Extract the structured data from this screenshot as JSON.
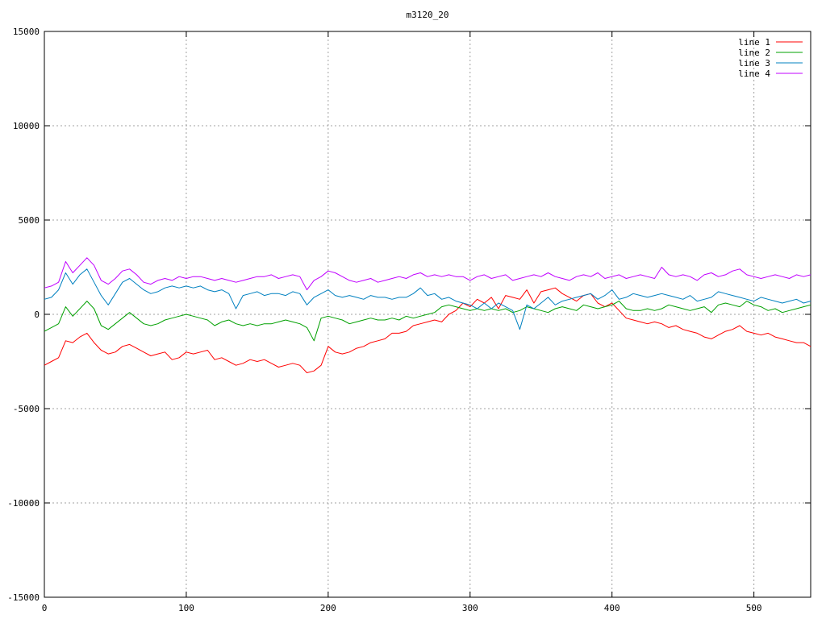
{
  "chart_data": {
    "type": "line",
    "title": "m3120_20",
    "xlabel": "",
    "ylabel": "",
    "xlim": [
      0,
      540
    ],
    "ylim": [
      -15000,
      15000
    ],
    "x_ticks": [
      0,
      100,
      200,
      300,
      400,
      500
    ],
    "x_tick_labels": [
      "0",
      "100",
      "200",
      "300",
      "400",
      "500"
    ],
    "y_ticks": [
      15000,
      10000,
      5000,
      0,
      -5000,
      -10000,
      -15000
    ],
    "y_tick_labels": [
      "15000",
      "10000",
      "5000",
      "0",
      "-5000",
      "-10000",
      "-15000"
    ],
    "grid": true,
    "legend_position": "top-right",
    "x": [
      0,
      5,
      10,
      15,
      20,
      25,
      30,
      35,
      40,
      45,
      50,
      55,
      60,
      65,
      70,
      75,
      80,
      85,
      90,
      95,
      100,
      105,
      110,
      115,
      120,
      125,
      130,
      135,
      140,
      145,
      150,
      155,
      160,
      165,
      170,
      175,
      180,
      185,
      190,
      195,
      200,
      205,
      210,
      215,
      220,
      225,
      230,
      235,
      240,
      245,
      250,
      255,
      260,
      265,
      270,
      275,
      280,
      285,
      290,
      295,
      300,
      305,
      310,
      315,
      320,
      325,
      330,
      335,
      340,
      345,
      350,
      355,
      360,
      365,
      370,
      375,
      380,
      385,
      390,
      395,
      400,
      405,
      410,
      415,
      420,
      425,
      430,
      435,
      440,
      445,
      450,
      455,
      460,
      465,
      470,
      475,
      480,
      485,
      490,
      495,
      500,
      505,
      510,
      515,
      520,
      525,
      530,
      535,
      540
    ],
    "series": [
      {
        "name": "line 1",
        "color": "#ff0000",
        "values": [
          -2700,
          -2500,
          -2300,
          -1400,
          -1500,
          -1200,
          -1000,
          -1500,
          -1900,
          -2100,
          -2000,
          -1700,
          -1600,
          -1800,
          -2000,
          -2200,
          -2100,
          -2000,
          -2400,
          -2300,
          -2000,
          -2100,
          -2000,
          -1900,
          -2400,
          -2300,
          -2500,
          -2700,
          -2600,
          -2400,
          -2500,
          -2400,
          -2600,
          -2800,
          -2700,
          -2600,
          -2700,
          -3100,
          -3000,
          -2700,
          -1700,
          -2000,
          -2100,
          -2000,
          -1800,
          -1700,
          -1500,
          -1400,
          -1300,
          -1000,
          -1000,
          -900,
          -600,
          -500,
          -400,
          -300,
          -400,
          0,
          200,
          600,
          400,
          800,
          600,
          900,
          300,
          1000,
          900,
          800,
          1300,
          600,
          1200,
          1300,
          1400,
          1100,
          900,
          700,
          1000,
          1100,
          600,
          400,
          600,
          200,
          -200,
          -300,
          -400,
          -500,
          -400,
          -500,
          -700,
          -600,
          -800,
          -900,
          -1000,
          -1200,
          -1300,
          -1100,
          -900,
          -800,
          -600,
          -900,
          -1000,
          -1100,
          -1000,
          -1200,
          -1300,
          -1400,
          -1500,
          -1500,
          -1700
        ]
      },
      {
        "name": "line 2",
        "color": "#00a000",
        "values": [
          -900,
          -700,
          -500,
          400,
          -100,
          300,
          700,
          300,
          -600,
          -800,
          -500,
          -200,
          100,
          -200,
          -500,
          -600,
          -500,
          -300,
          -200,
          -100,
          0,
          -100,
          -200,
          -300,
          -600,
          -400,
          -300,
          -500,
          -600,
          -500,
          -600,
          -500,
          -500,
          -400,
          -300,
          -400,
          -500,
          -700,
          -1400,
          -200,
          -100,
          -200,
          -300,
          -500,
          -400,
          -300,
          -200,
          -300,
          -300,
          -200,
          -300,
          -100,
          -200,
          -100,
          0,
          100,
          400,
          500,
          400,
          300,
          200,
          300,
          200,
          300,
          200,
          300,
          100,
          200,
          400,
          300,
          200,
          100,
          300,
          400,
          300,
          200,
          500,
          400,
          300,
          400,
          500,
          700,
          300,
          200,
          200,
          300,
          200,
          300,
          500,
          400,
          300,
          200,
          300,
          400,
          100,
          500,
          600,
          500,
          400,
          700,
          500,
          400,
          200,
          300,
          100,
          200,
          300,
          400,
          500
        ]
      },
      {
        "name": "line 3",
        "color": "#0080c0",
        "values": [
          800,
          900,
          1300,
          2200,
          1600,
          2100,
          2400,
          1700,
          1000,
          500,
          1100,
          1700,
          1900,
          1600,
          1300,
          1100,
          1200,
          1400,
          1500,
          1400,
          1500,
          1400,
          1500,
          1300,
          1200,
          1300,
          1100,
          300,
          1000,
          1100,
          1200,
          1000,
          1100,
          1100,
          1000,
          1200,
          1100,
          500,
          900,
          1100,
          1300,
          1000,
          900,
          1000,
          900,
          800,
          1000,
          900,
          900,
          800,
          900,
          900,
          1100,
          1400,
          1000,
          1100,
          800,
          900,
          700,
          600,
          500,
          300,
          600,
          300,
          600,
          400,
          200,
          -800,
          500,
          300,
          600,
          900,
          500,
          700,
          800,
          900,
          1000,
          1100,
          800,
          1000,
          1300,
          800,
          900,
          1100,
          1000,
          900,
          1000,
          1100,
          1000,
          900,
          800,
          1000,
          700,
          800,
          900,
          1200,
          1100,
          1000,
          900,
          800,
          700,
          900,
          800,
          700,
          600,
          700,
          800,
          600,
          700
        ]
      },
      {
        "name": "line 4",
        "color": "#c000ff",
        "values": [
          1400,
          1500,
          1700,
          2800,
          2200,
          2600,
          3000,
          2600,
          1800,
          1600,
          1900,
          2300,
          2400,
          2100,
          1700,
          1600,
          1800,
          1900,
          1800,
          2000,
          1900,
          2000,
          2000,
          1900,
          1800,
          1900,
          1800,
          1700,
          1800,
          1900,
          2000,
          2000,
          2100,
          1900,
          2000,
          2100,
          2000,
          1300,
          1800,
          2000,
          2300,
          2200,
          2000,
          1800,
          1700,
          1800,
          1900,
          1700,
          1800,
          1900,
          2000,
          1900,
          2100,
          2200,
          2000,
          2100,
          2000,
          2100,
          2000,
          2000,
          1800,
          2000,
          2100,
          1900,
          2000,
          2100,
          1800,
          1900,
          2000,
          2100,
          2000,
          2200,
          2000,
          1900,
          1800,
          2000,
          2100,
          2000,
          2200,
          1900,
          2000,
          2100,
          1900,
          2000,
          2100,
          2000,
          1900,
          2500,
          2100,
          2000,
          2100,
          2000,
          1800,
          2100,
          2200,
          2000,
          2100,
          2300,
          2400,
          2100,
          2000,
          1900,
          2000,
          2100,
          2000,
          1900,
          2100,
          2000,
          2100
        ]
      }
    ]
  }
}
